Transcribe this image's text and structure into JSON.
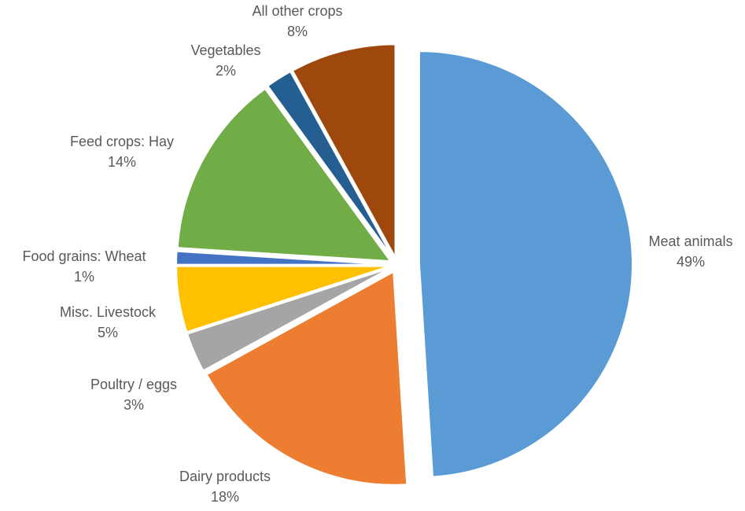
{
  "chart_data": {
    "type": "pie",
    "title": "",
    "legend": "none",
    "slices": [
      {
        "label": "Meat animals",
        "value": 49,
        "value_label": "49%",
        "color": "#5B9BD5"
      },
      {
        "label": "Dairy products",
        "value": 18,
        "value_label": "18%",
        "color": "#ED7D31"
      },
      {
        "label": "Poultry / eggs",
        "value": 3,
        "value_label": "3%",
        "color": "#A5A5A5"
      },
      {
        "label": "Misc. Livestock",
        "value": 5,
        "value_label": "5%",
        "color": "#FFC000"
      },
      {
        "label": "Food grains:  Wheat",
        "value": 1,
        "value_label": "1%",
        "color": "#4472C4"
      },
      {
        "label": "Feed crops:  Hay",
        "value": 14,
        "value_label": "14%",
        "color": "#70AD47"
      },
      {
        "label": "Vegetables",
        "value": 2,
        "value_label": "2%",
        "color": "#255E91"
      },
      {
        "label": "All other crops",
        "value": 8,
        "value_label": "8%",
        "color": "#9E480E"
      }
    ]
  }
}
